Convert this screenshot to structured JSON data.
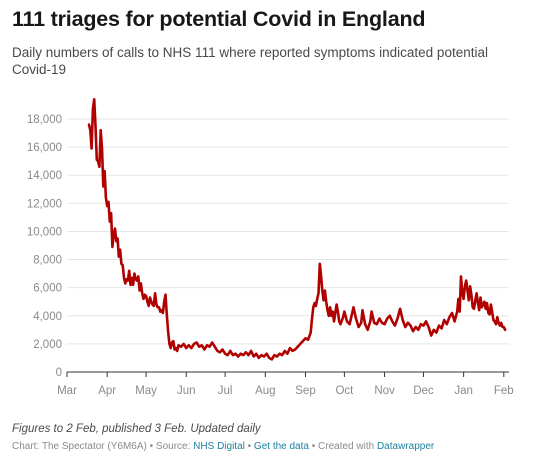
{
  "header": {
    "title": "111 triages for potential Covid in England",
    "subtitle": "Daily numbers of calls to NHS 111 where reported symptoms indicated potential Covid-19"
  },
  "footer": {
    "notes": "Figures to 2 Feb, published 3 Feb. Updated daily",
    "chart_prefix": "Chart: The Spectator (Y6M6A) • Source: ",
    "source_link": "NHS Digital",
    "sep": " • ",
    "data_link": "Get the data",
    "created_prefix": " • Created with ",
    "tool_link": "Datawrapper"
  },
  "colors": {
    "line": "#b10000",
    "grid": "#e6e6e6",
    "axis": "#333333",
    "tick_text": "#8a8a8a",
    "link": "#1d81a2"
  },
  "chart_data": {
    "type": "line",
    "title": "111 triages for potential Covid in England",
    "subtitle": "Daily numbers of calls to NHS 111 where reported symptoms indicated potential Covid-19",
    "x_type": "date",
    "xlim": [
      "2020-03-01",
      "2021-02-05"
    ],
    "ylim": [
      0,
      19500
    ],
    "y_ticks": [
      0,
      2000,
      4000,
      6000,
      8000,
      10000,
      12000,
      14000,
      16000,
      18000
    ],
    "y_tick_labels": [
      "0",
      "2,000",
      "4,000",
      "6,000",
      "8,000",
      "10,000",
      "12,000",
      "14,000",
      "16,000",
      "18,000"
    ],
    "x_ticks": [
      "2020-03-01",
      "2020-04-01",
      "2020-05-01",
      "2020-06-01",
      "2020-07-01",
      "2020-08-01",
      "2020-09-01",
      "2020-10-01",
      "2020-11-01",
      "2020-12-01",
      "2021-01-01",
      "2021-02-01"
    ],
    "x_tick_labels": [
      "Mar",
      "Apr",
      "May",
      "Jun",
      "Jul",
      "Aug",
      "Sep",
      "Oct",
      "Nov",
      "Dec",
      "Jan",
      "Feb"
    ],
    "grid": true,
    "legend": "none",
    "series": [
      {
        "points": [
          [
            "2020-03-18",
            17600
          ],
          [
            "2020-03-19",
            17200
          ],
          [
            "2020-03-20",
            15900
          ],
          [
            "2020-03-21",
            18700
          ],
          [
            "2020-03-22",
            19400
          ],
          [
            "2020-03-23",
            17500
          ],
          [
            "2020-03-24",
            15100
          ],
          [
            "2020-03-25",
            15000
          ],
          [
            "2020-03-26",
            14600
          ],
          [
            "2020-03-27",
            17200
          ],
          [
            "2020-03-28",
            15900
          ],
          [
            "2020-03-29",
            13200
          ],
          [
            "2020-03-30",
            14300
          ],
          [
            "2020-03-31",
            12400
          ],
          [
            "2020-04-01",
            11800
          ],
          [
            "2020-04-02",
            12100
          ],
          [
            "2020-04-03",
            10700
          ],
          [
            "2020-04-04",
            11300
          ],
          [
            "2020-04-05",
            8900
          ],
          [
            "2020-04-06",
            9800
          ],
          [
            "2020-04-07",
            10200
          ],
          [
            "2020-04-08",
            9300
          ],
          [
            "2020-04-09",
            9500
          ],
          [
            "2020-04-10",
            8200
          ],
          [
            "2020-04-11",
            8700
          ],
          [
            "2020-04-12",
            7700
          ],
          [
            "2020-04-13",
            7600
          ],
          [
            "2020-04-14",
            6700
          ],
          [
            "2020-04-15",
            6300
          ],
          [
            "2020-04-16",
            6600
          ],
          [
            "2020-04-17",
            6500
          ],
          [
            "2020-04-18",
            7200
          ],
          [
            "2020-04-19",
            6200
          ],
          [
            "2020-04-20",
            6700
          ],
          [
            "2020-04-21",
            6200
          ],
          [
            "2020-04-22",
            7000
          ],
          [
            "2020-04-23",
            6600
          ],
          [
            "2020-04-24",
            6500
          ],
          [
            "2020-04-25",
            6800
          ],
          [
            "2020-04-26",
            5800
          ],
          [
            "2020-04-27",
            6300
          ],
          [
            "2020-04-28",
            5600
          ],
          [
            "2020-04-29",
            5200
          ],
          [
            "2020-04-30",
            5500
          ],
          [
            "2020-05-01",
            5400
          ],
          [
            "2020-05-02",
            5000
          ],
          [
            "2020-05-03",
            4700
          ],
          [
            "2020-05-04",
            5300
          ],
          [
            "2020-05-05",
            5000
          ],
          [
            "2020-05-06",
            4800
          ],
          [
            "2020-05-07",
            4700
          ],
          [
            "2020-05-08",
            5600
          ],
          [
            "2020-05-09",
            4800
          ],
          [
            "2020-05-10",
            4600
          ],
          [
            "2020-05-11",
            4600
          ],
          [
            "2020-05-12",
            4300
          ],
          [
            "2020-05-13",
            4400
          ],
          [
            "2020-05-14",
            4200
          ],
          [
            "2020-05-15",
            5000
          ],
          [
            "2020-05-16",
            5500
          ],
          [
            "2020-05-17",
            4100
          ],
          [
            "2020-05-18",
            2900
          ],
          [
            "2020-05-19",
            2000
          ],
          [
            "2020-05-20",
            1700
          ],
          [
            "2020-05-21",
            2100
          ],
          [
            "2020-05-22",
            2200
          ],
          [
            "2020-05-23",
            1600
          ],
          [
            "2020-05-24",
            1700
          ],
          [
            "2020-05-25",
            1500
          ],
          [
            "2020-05-26",
            1900
          ],
          [
            "2020-05-28",
            1800
          ],
          [
            "2020-05-30",
            2000
          ],
          [
            "2020-06-01",
            1700
          ],
          [
            "2020-06-03",
            1900
          ],
          [
            "2020-06-05",
            1700
          ],
          [
            "2020-06-07",
            2000
          ],
          [
            "2020-06-09",
            2100
          ],
          [
            "2020-06-11",
            1800
          ],
          [
            "2020-06-13",
            1900
          ],
          [
            "2020-06-15",
            1600
          ],
          [
            "2020-06-17",
            1900
          ],
          [
            "2020-06-19",
            1800
          ],
          [
            "2020-06-21",
            2100
          ],
          [
            "2020-06-23",
            1800
          ],
          [
            "2020-06-25",
            1500
          ],
          [
            "2020-06-27",
            1400
          ],
          [
            "2020-06-29",
            1600
          ],
          [
            "2020-07-01",
            1300
          ],
          [
            "2020-07-03",
            1200
          ],
          [
            "2020-07-05",
            1500
          ],
          [
            "2020-07-07",
            1200
          ],
          [
            "2020-07-09",
            1300
          ],
          [
            "2020-07-11",
            1100
          ],
          [
            "2020-07-13",
            1300
          ],
          [
            "2020-07-15",
            1200
          ],
          [
            "2020-07-17",
            1400
          ],
          [
            "2020-07-19",
            1200
          ],
          [
            "2020-07-21",
            1500
          ],
          [
            "2020-07-23",
            1100
          ],
          [
            "2020-07-25",
            1300
          ],
          [
            "2020-07-27",
            1000
          ],
          [
            "2020-07-29",
            1200
          ],
          [
            "2020-07-31",
            1100
          ],
          [
            "2020-08-02",
            1300
          ],
          [
            "2020-08-04",
            1000
          ],
          [
            "2020-08-06",
            900
          ],
          [
            "2020-08-08",
            1200
          ],
          [
            "2020-08-10",
            1100
          ],
          [
            "2020-08-12",
            1300
          ],
          [
            "2020-08-14",
            1200
          ],
          [
            "2020-08-16",
            1500
          ],
          [
            "2020-08-18",
            1300
          ],
          [
            "2020-08-20",
            1700
          ],
          [
            "2020-08-22",
            1500
          ],
          [
            "2020-08-24",
            1600
          ],
          [
            "2020-08-26",
            1800
          ],
          [
            "2020-08-28",
            2000
          ],
          [
            "2020-08-30",
            2200
          ],
          [
            "2020-09-01",
            2400
          ],
          [
            "2020-09-03",
            2300
          ],
          [
            "2020-09-05",
            2800
          ],
          [
            "2020-09-06",
            3800
          ],
          [
            "2020-09-07",
            4600
          ],
          [
            "2020-09-08",
            4900
          ],
          [
            "2020-09-09",
            4700
          ],
          [
            "2020-09-10",
            5200
          ],
          [
            "2020-09-11",
            5600
          ],
          [
            "2020-09-12",
            7700
          ],
          [
            "2020-09-13",
            6800
          ],
          [
            "2020-09-14",
            5800
          ],
          [
            "2020-09-15",
            5100
          ],
          [
            "2020-09-16",
            5800
          ],
          [
            "2020-09-17",
            5000
          ],
          [
            "2020-09-18",
            4400
          ],
          [
            "2020-09-19",
            4000
          ],
          [
            "2020-09-20",
            4600
          ],
          [
            "2020-09-21",
            4000
          ],
          [
            "2020-09-22",
            4300
          ],
          [
            "2020-09-23",
            3600
          ],
          [
            "2020-09-24",
            4200
          ],
          [
            "2020-09-25",
            4800
          ],
          [
            "2020-09-26",
            4300
          ],
          [
            "2020-09-27",
            3600
          ],
          [
            "2020-09-28",
            3400
          ],
          [
            "2020-09-30",
            3900
          ],
          [
            "2020-10-01",
            4300
          ],
          [
            "2020-10-03",
            3600
          ],
          [
            "2020-10-05",
            3400
          ],
          [
            "2020-10-07",
            4200
          ],
          [
            "2020-10-08",
            4600
          ],
          [
            "2020-10-10",
            3800
          ],
          [
            "2020-10-12",
            3200
          ],
          [
            "2020-10-14",
            3500
          ],
          [
            "2020-10-15",
            4400
          ],
          [
            "2020-10-17",
            3400
          ],
          [
            "2020-10-19",
            3000
          ],
          [
            "2020-10-21",
            3600
          ],
          [
            "2020-10-22",
            4300
          ],
          [
            "2020-10-24",
            3500
          ],
          [
            "2020-10-26",
            3400
          ],
          [
            "2020-10-28",
            3800
          ],
          [
            "2020-10-30",
            3500
          ],
          [
            "2020-11-01",
            3400
          ],
          [
            "2020-11-03",
            3800
          ],
          [
            "2020-11-05",
            4000
          ],
          [
            "2020-11-07",
            3600
          ],
          [
            "2020-11-09",
            3300
          ],
          [
            "2020-11-11",
            3800
          ],
          [
            "2020-11-13",
            4500
          ],
          [
            "2020-11-15",
            3700
          ],
          [
            "2020-11-17",
            3200
          ],
          [
            "2020-11-19",
            3500
          ],
          [
            "2020-11-21",
            3300
          ],
          [
            "2020-11-23",
            2900
          ],
          [
            "2020-11-25",
            3200
          ],
          [
            "2020-11-27",
            3000
          ],
          [
            "2020-11-29",
            3400
          ],
          [
            "2020-12-01",
            3300
          ],
          [
            "2020-12-03",
            3600
          ],
          [
            "2020-12-05",
            3200
          ],
          [
            "2020-12-07",
            2600
          ],
          [
            "2020-12-09",
            3000
          ],
          [
            "2020-12-11",
            2800
          ],
          [
            "2020-12-13",
            3300
          ],
          [
            "2020-12-15",
            3100
          ],
          [
            "2020-12-17",
            3700
          ],
          [
            "2020-12-19",
            3400
          ],
          [
            "2020-12-21",
            3900
          ],
          [
            "2020-12-23",
            4200
          ],
          [
            "2020-12-25",
            3600
          ],
          [
            "2020-12-27",
            4300
          ],
          [
            "2020-12-28",
            5200
          ],
          [
            "2020-12-29",
            4300
          ],
          [
            "2020-12-30",
            6800
          ],
          [
            "2020-12-31",
            5600
          ],
          [
            "2021-01-01",
            5200
          ],
          [
            "2021-01-02",
            6100
          ],
          [
            "2021-01-03",
            6500
          ],
          [
            "2021-01-04",
            5800
          ],
          [
            "2021-01-05",
            5100
          ],
          [
            "2021-01-06",
            6100
          ],
          [
            "2021-01-07",
            5500
          ],
          [
            "2021-01-08",
            4600
          ],
          [
            "2021-01-09",
            4500
          ],
          [
            "2021-01-10",
            5100
          ],
          [
            "2021-01-11",
            5600
          ],
          [
            "2021-01-12",
            4900
          ],
          [
            "2021-01-13",
            4400
          ],
          [
            "2021-01-14",
            5300
          ],
          [
            "2021-01-15",
            4600
          ],
          [
            "2021-01-16",
            4800
          ],
          [
            "2021-01-17",
            5000
          ],
          [
            "2021-01-18",
            4500
          ],
          [
            "2021-01-19",
            4900
          ],
          [
            "2021-01-20",
            4200
          ],
          [
            "2021-01-21",
            4100
          ],
          [
            "2021-01-22",
            4800
          ],
          [
            "2021-01-23",
            4300
          ],
          [
            "2021-01-24",
            3700
          ],
          [
            "2021-01-25",
            3600
          ],
          [
            "2021-01-26",
            3400
          ],
          [
            "2021-01-27",
            3900
          ],
          [
            "2021-01-28",
            3500
          ],
          [
            "2021-01-29",
            3300
          ],
          [
            "2021-01-30",
            3500
          ],
          [
            "2021-01-31",
            3200
          ],
          [
            "2021-02-01",
            3200
          ],
          [
            "2021-02-02",
            3000
          ]
        ]
      }
    ]
  }
}
